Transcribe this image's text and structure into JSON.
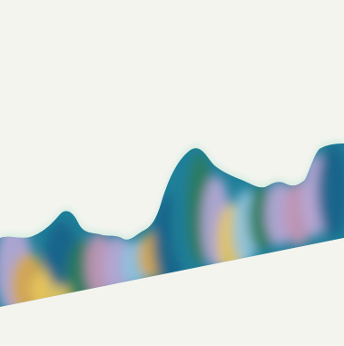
{
  "scene": {
    "background_color": "#f4f4ef",
    "palette": {
      "teal": "#1f7f99",
      "deep_teal": "#17628a",
      "green": "#2f7a5a",
      "lavender": "#b9a8d6",
      "mauve": "#c896b6",
      "gold": "#e9c65c",
      "amber": "#d6a64a",
      "sky": "#8fc3df",
      "glow": "#bfe7d7"
    }
  }
}
